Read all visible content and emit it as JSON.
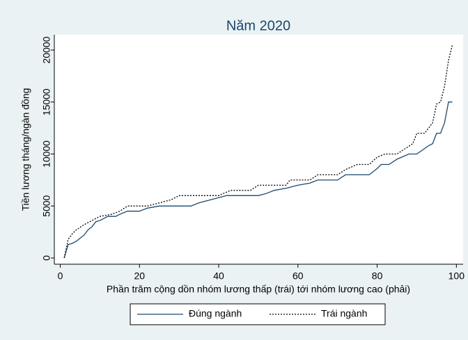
{
  "chart_data": {
    "type": "line",
    "title": "Năm 2020",
    "x_label": "Phần trăm cộng dồn nhóm lương thấp (trái) tới nhóm lương cao (phải)",
    "y_label": "Tiền lương tháng/ngàn đồng",
    "xlim": [
      -1.5,
      101.7
    ],
    "ylim": [
      -600,
      21470
    ],
    "xticks": [
      0,
      20,
      40,
      60,
      80,
      100
    ],
    "yticks": [
      0,
      5000,
      10000,
      15000,
      20000
    ],
    "legend": "bottom",
    "series": [
      {
        "name": "Đúng ngành",
        "color": "#1a476f",
        "style": "solid",
        "x": [
          1,
          2,
          3,
          4,
          5,
          6,
          7,
          8,
          9,
          10,
          12,
          14,
          15,
          17,
          20,
          22,
          25,
          30,
          33,
          35,
          37,
          40,
          42,
          45,
          50,
          52,
          54,
          57,
          60,
          63,
          65,
          70,
          72,
          78,
          80,
          81,
          83,
          85,
          88,
          90,
          93,
          94,
          95,
          96,
          97,
          98,
          99
        ],
        "values": [
          0,
          1300,
          1400,
          1600,
          1900,
          2200,
          2700,
          3000,
          3500,
          3600,
          4000,
          4000,
          4200,
          4500,
          4500,
          4800,
          5000,
          5000,
          5000,
          5300,
          5500,
          5800,
          6000,
          6000,
          6000,
          6200,
          6500,
          6700,
          7000,
          7200,
          7500,
          7500,
          8000,
          8000,
          8600,
          9000,
          9000,
          9500,
          10000,
          10000,
          10800,
          11000,
          12000,
          12000,
          13000,
          15000,
          15000
        ]
      },
      {
        "name": "Trái ngành",
        "color": "#000000",
        "style": "dotted",
        "x": [
          1,
          2,
          3,
          4,
          6,
          8,
          10,
          13,
          15,
          17,
          22,
          25,
          28,
          30,
          40,
          43,
          48,
          50,
          57,
          58,
          63,
          65,
          70,
          72,
          75,
          78,
          80,
          82,
          85,
          87,
          89,
          90,
          92,
          94,
          95,
          96,
          97,
          98,
          99
        ],
        "values": [
          0,
          1800,
          2300,
          2700,
          3200,
          3600,
          4000,
          4200,
          4500,
          5000,
          5000,
          5300,
          5600,
          6000,
          6000,
          6500,
          6500,
          7000,
          7000,
          7500,
          7500,
          8000,
          8000,
          8500,
          9000,
          9000,
          9700,
          10000,
          10000,
          10500,
          11000,
          12000,
          12000,
          13000,
          14800,
          15000,
          16500,
          19000,
          20500
        ]
      }
    ]
  }
}
